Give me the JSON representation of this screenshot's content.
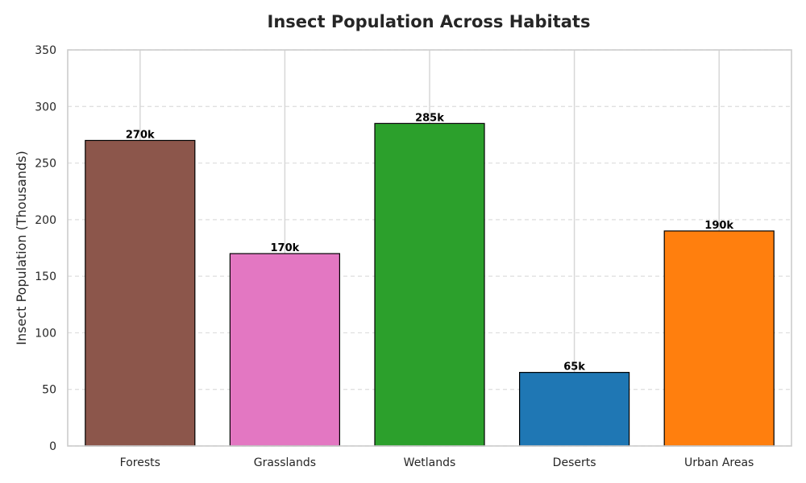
{
  "chart_data": {
    "type": "bar",
    "title": "Insect Population Across Habitats",
    "xlabel": "",
    "ylabel": "Insect Population (Thousands)",
    "categories": [
      "Forests",
      "Grasslands",
      "Wetlands",
      "Deserts",
      "Urban Areas"
    ],
    "values": [
      270,
      170,
      285,
      65,
      190
    ],
    "data_labels": [
      "270k",
      "170k",
      "285k",
      "65k",
      "190k"
    ],
    "colors": [
      "#8c564b",
      "#e377c2",
      "#2ca02c",
      "#1f77b4",
      "#ff7f0e"
    ],
    "ylim": [
      0,
      350
    ],
    "yticks": [
      0,
      50,
      100,
      150,
      200,
      250,
      300,
      350
    ],
    "grid": {
      "y": "dashed",
      "x": "solid"
    },
    "colors_style": {
      "bar_edge": "#000000",
      "axis_edge": "#cccccc",
      "grid": "#dddddd"
    }
  }
}
